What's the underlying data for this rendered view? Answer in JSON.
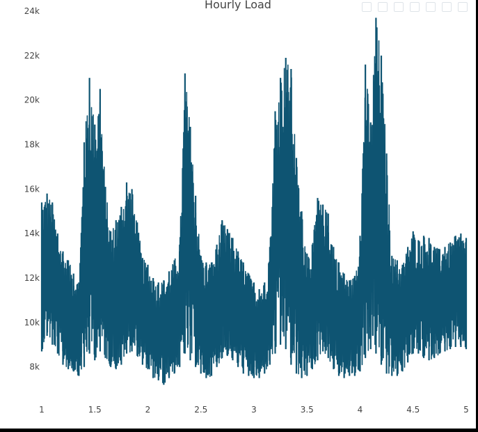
{
  "colors": {
    "line": "#0e5472",
    "background": "#ffffff",
    "outer": "#000000",
    "text": "#444444"
  },
  "chart_data": {
    "type": "line",
    "title": "Hourly Load",
    "xlabel": "",
    "ylabel": "",
    "grid": false,
    "legend": "none",
    "xlim": [
      1,
      5
    ],
    "ylim": [
      6800,
      24500
    ],
    "xticks": [
      1,
      1.5,
      2,
      2.5,
      3,
      3.5,
      4,
      4.5,
      5
    ],
    "xtick_labels": [
      "1",
      "1.5",
      "2",
      "2.5",
      "3",
      "3.5",
      "4",
      "4.5",
      "5"
    ],
    "yticks": [
      8000,
      10000,
      12000,
      14000,
      16000,
      18000,
      20000,
      22000,
      24000
    ],
    "ytick_labels": [
      "8k",
      "10k",
      "12k",
      "14k",
      "16k",
      "18k",
      "20k",
      "22k",
      "24k"
    ],
    "series": [
      {
        "values_note_free": true,
        "x": [
          1.0,
          1.05,
          1.1,
          1.15,
          1.2,
          1.25,
          1.3,
          1.35,
          1.4,
          1.45,
          1.5,
          1.55,
          1.6,
          1.65,
          1.7,
          1.75,
          1.8,
          1.85,
          1.9,
          1.95,
          2.0,
          2.05,
          2.1,
          2.15,
          2.2,
          2.25,
          2.3,
          2.35,
          2.4,
          2.45,
          2.5,
          2.55,
          2.6,
          2.65,
          2.7,
          2.75,
          2.8,
          2.85,
          2.9,
          2.95,
          3.0,
          3.05,
          3.1,
          3.15,
          3.2,
          3.25,
          3.3,
          3.35,
          3.4,
          3.45,
          3.5,
          3.55,
          3.6,
          3.65,
          3.7,
          3.75,
          3.8,
          3.85,
          3.9,
          3.95,
          4.0,
          4.05,
          4.1,
          4.15,
          4.2,
          4.25,
          4.3,
          4.35,
          4.4,
          4.45,
          4.5,
          4.55,
          4.6,
          4.65,
          4.7,
          4.75,
          4.8,
          4.85,
          4.9,
          4.95,
          5.0
        ],
        "y_max": [
          15400,
          15800,
          15400,
          14000,
          13200,
          12800,
          12200,
          11800,
          18100,
          21000,
          18900,
          20500,
          16100,
          14100,
          14600,
          15200,
          16300,
          16000,
          14500,
          12900,
          12600,
          12000,
          11800,
          11900,
          12300,
          12800,
          13500,
          21200,
          18800,
          15700,
          13000,
          12700,
          12700,
          13500,
          14600,
          14200,
          13800,
          13200,
          12700,
          12200,
          11800,
          11500,
          11800,
          13400,
          19500,
          21000,
          21900,
          21400,
          17400,
          15000,
          13100,
          13500,
          15600,
          15300,
          14900,
          13400,
          12700,
          12200,
          11900,
          12100,
          13900,
          21600,
          19000,
          23700,
          22000,
          17600,
          13000,
          12800,
          12600,
          13400,
          14100,
          13700,
          13900,
          13800,
          13400,
          13300,
          13400,
          13600,
          13900,
          14000,
          13800
        ],
        "y_min": [
          8700,
          9400,
          9000,
          8600,
          8100,
          7900,
          7800,
          7600,
          8000,
          8600,
          8300,
          8700,
          8400,
          8000,
          7900,
          8100,
          8600,
          8700,
          8500,
          8100,
          7900,
          7500,
          7400,
          7200,
          7500,
          7700,
          8000,
          8600,
          8300,
          8000,
          7700,
          7500,
          7600,
          8000,
          8400,
          8500,
          8300,
          8000,
          7700,
          7600,
          7500,
          7500,
          7700,
          8100,
          8600,
          9000,
          8800,
          8100,
          7700,
          7500,
          7600,
          7900,
          8300,
          8700,
          8400,
          7900,
          7600,
          7500,
          7600,
          7600,
          7800,
          8400,
          8800,
          8600,
          8100,
          7700,
          7600,
          7600,
          7800,
          8200,
          8600,
          8600,
          8400,
          8300,
          8400,
          8600,
          8700,
          8800,
          8900,
          8900,
          8800
        ]
      }
    ]
  }
}
